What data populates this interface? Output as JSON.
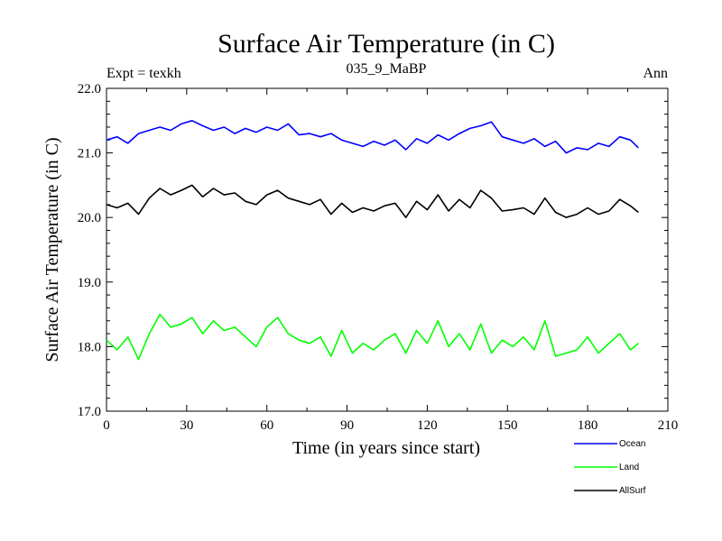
{
  "chart_data": {
    "type": "line",
    "title": "Surface Air Temperature (in C)",
    "subtitle": "035_9_MaBP",
    "left_note": "Expt = texkh",
    "right_note": "Ann",
    "xlabel": "Time (in years since start)",
    "ylabel": "Surface Air Temperature (in C)",
    "xlim": [
      0,
      210
    ],
    "ylim": [
      17.0,
      22.0
    ],
    "xticks": [
      0,
      30,
      60,
      90,
      120,
      150,
      180,
      210
    ],
    "xtick_labels": [
      "0",
      "30",
      "60",
      "90",
      "120",
      "150",
      "180",
      "210"
    ],
    "yticks": [
      17.0,
      18.0,
      19.0,
      20.0,
      21.0,
      22.0
    ],
    "ytick_labels": [
      "17.0",
      "18.0",
      "19.0",
      "20.0",
      "21.0",
      "22.0"
    ],
    "legend_position": "bottom-right, below plot",
    "series": [
      {
        "name": "Ocean",
        "color": "#0000ff",
        "x": [
          0,
          4,
          8,
          12,
          16,
          20,
          24,
          28,
          32,
          36,
          40,
          44,
          48,
          52,
          56,
          60,
          64,
          68,
          72,
          76,
          80,
          84,
          88,
          92,
          96,
          100,
          104,
          108,
          112,
          116,
          120,
          124,
          128,
          132,
          136,
          140,
          144,
          148,
          152,
          156,
          160,
          164,
          168,
          172,
          176,
          180,
          184,
          188,
          192,
          196,
          199
        ],
        "values": [
          21.2,
          21.25,
          21.15,
          21.3,
          21.35,
          21.4,
          21.35,
          21.45,
          21.5,
          21.42,
          21.35,
          21.4,
          21.3,
          21.38,
          21.32,
          21.4,
          21.35,
          21.45,
          21.28,
          21.3,
          21.25,
          21.3,
          21.2,
          21.15,
          21.1,
          21.18,
          21.12,
          21.2,
          21.05,
          21.22,
          21.15,
          21.28,
          21.2,
          21.3,
          21.38,
          21.42,
          21.48,
          21.25,
          21.2,
          21.15,
          21.22,
          21.1,
          21.18,
          21.0,
          21.08,
          21.05,
          21.15,
          21.1,
          21.25,
          21.2,
          21.08
        ]
      },
      {
        "name": "Land",
        "color": "#00ff00",
        "x": [
          0,
          4,
          8,
          12,
          16,
          20,
          24,
          28,
          32,
          36,
          40,
          44,
          48,
          52,
          56,
          60,
          64,
          68,
          72,
          76,
          80,
          84,
          88,
          92,
          96,
          100,
          104,
          108,
          112,
          116,
          120,
          124,
          128,
          132,
          136,
          140,
          144,
          148,
          152,
          156,
          160,
          164,
          168,
          172,
          176,
          180,
          184,
          188,
          192,
          196,
          199
        ],
        "values": [
          18.1,
          17.95,
          18.15,
          17.8,
          18.2,
          18.5,
          18.3,
          18.35,
          18.45,
          18.2,
          18.4,
          18.25,
          18.3,
          18.15,
          18.0,
          18.3,
          18.45,
          18.2,
          18.1,
          18.05,
          18.15,
          17.85,
          18.25,
          17.9,
          18.05,
          17.95,
          18.1,
          18.2,
          17.9,
          18.25,
          18.05,
          18.4,
          18.0,
          18.2,
          17.95,
          18.35,
          17.9,
          18.1,
          18.0,
          18.15,
          17.95,
          18.4,
          17.85,
          17.9,
          17.95,
          18.15,
          17.9,
          18.05,
          18.2,
          17.95,
          18.05
        ]
      },
      {
        "name": "AllSurf",
        "color": "#000000",
        "x": [
          0,
          4,
          8,
          12,
          16,
          20,
          24,
          28,
          32,
          36,
          40,
          44,
          48,
          52,
          56,
          60,
          64,
          68,
          72,
          76,
          80,
          84,
          88,
          92,
          96,
          100,
          104,
          108,
          112,
          116,
          120,
          124,
          128,
          132,
          136,
          140,
          144,
          148,
          152,
          156,
          160,
          164,
          168,
          172,
          176,
          180,
          184,
          188,
          192,
          196,
          199
        ],
        "values": [
          20.2,
          20.15,
          20.22,
          20.05,
          20.3,
          20.45,
          20.35,
          20.42,
          20.5,
          20.32,
          20.45,
          20.35,
          20.38,
          20.25,
          20.2,
          20.35,
          20.42,
          20.3,
          20.25,
          20.2,
          20.28,
          20.05,
          20.22,
          20.08,
          20.15,
          20.1,
          20.18,
          20.22,
          20.0,
          20.25,
          20.12,
          20.35,
          20.1,
          20.28,
          20.15,
          20.42,
          20.3,
          20.1,
          20.12,
          20.15,
          20.05,
          20.3,
          20.08,
          20.0,
          20.05,
          20.15,
          20.05,
          20.1,
          20.28,
          20.18,
          20.08
        ]
      }
    ]
  }
}
